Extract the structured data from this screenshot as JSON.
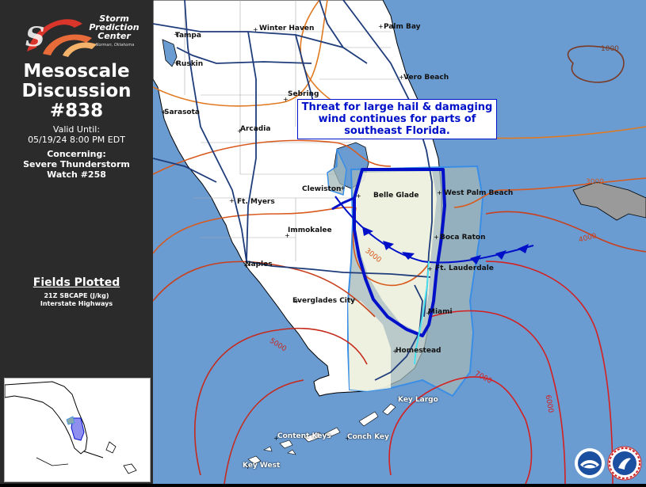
{
  "logo": {
    "abbrev": "SPC",
    "name_line1": "Storm",
    "name_line2": "Prediction",
    "name_line3": "Center",
    "location": "Norman, Oklahoma"
  },
  "discussion": {
    "title_line1": "Mesoscale",
    "title_line2": "Discussion",
    "number": "#838",
    "valid_label": "Valid Until:",
    "valid_time": "05/19/24 8:00 PM EDT",
    "concerning_label": "Concerning:",
    "concerning_line1": "Severe Thunderstorm",
    "concerning_line2": "Watch #258"
  },
  "fields": {
    "title": "Fields Plotted",
    "items": [
      "21Z SBCAPE (J/kg)",
      "Interstate Highways"
    ]
  },
  "message": {
    "line1": "Threat for large hail & damaging",
    "line2": "wind continues for parts of",
    "line3": "southeast Florida."
  },
  "cities": [
    {
      "name": "Tampa"
    },
    {
      "name": "Winter Haven"
    },
    {
      "name": "Palm Bay"
    },
    {
      "name": "Ruskin"
    },
    {
      "name": "Vero Beach"
    },
    {
      "name": "Sebring"
    },
    {
      "name": "Sarasota"
    },
    {
      "name": "Arcadia"
    },
    {
      "name": "Clewiston"
    },
    {
      "name": "Belle Glade"
    },
    {
      "name": "West Palm Beach"
    },
    {
      "name": "Ft. Myers"
    },
    {
      "name": "Immokalee"
    },
    {
      "name": "Boca Raton"
    },
    {
      "name": "Naples"
    },
    {
      "name": "Ft. Lauderdale"
    },
    {
      "name": "Everglades City"
    },
    {
      "name": "Miami"
    },
    {
      "name": "Homestead"
    },
    {
      "name": "Key Largo"
    },
    {
      "name": "Content Keys"
    },
    {
      "name": "Conch Key"
    },
    {
      "name": "Key West"
    }
  ],
  "contours": {
    "labels": [
      "1000",
      "3000",
      "3000",
      "4000",
      "5000",
      "7000",
      "6000"
    ]
  },
  "colors": {
    "sidebar": "#2b2b2b",
    "ocean": "#6a9bd1",
    "land": "#ffffff",
    "md_outline": "#0010c8",
    "watch_outline": "#3a8ee6",
    "watch_fill": "#a3b7b8",
    "highway": "#1f3c7a"
  },
  "icons": [
    "spc-logo-icon",
    "noaa-logo-icon",
    "nws-logo-icon"
  ]
}
